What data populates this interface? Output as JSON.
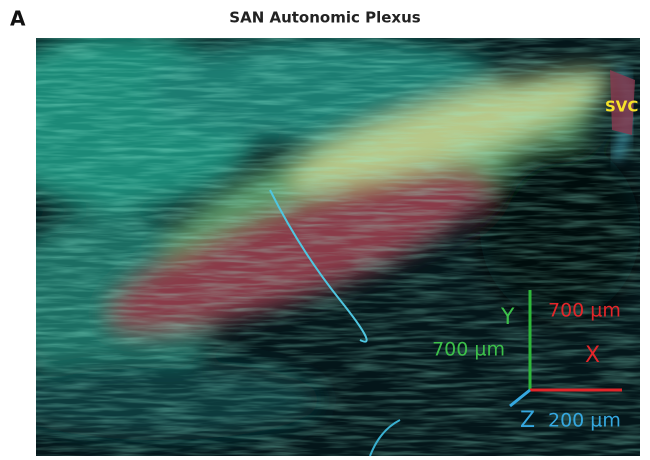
{
  "panel_label": "A",
  "title": "SAN Autonomic Plexus",
  "image_labels": {
    "vessel": "SVC"
  },
  "scale_axes": {
    "y_label": "Y",
    "y_length": "700 µm",
    "x_length": "700 µm",
    "x_label": "X",
    "z_label": "Z",
    "z_length": "200 µm"
  }
}
